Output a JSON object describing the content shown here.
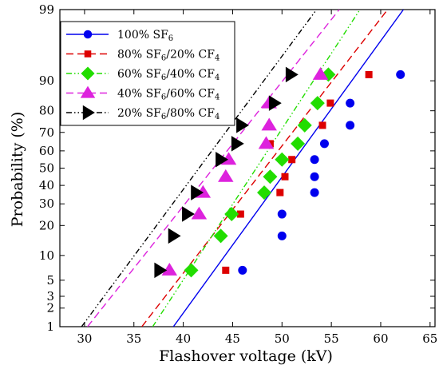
{
  "chart_data": {
    "type": "scatter",
    "xlabel": "Flashover voltage (kV)",
    "ylabel": "Probability (%)",
    "xlim": [
      27.5,
      65.5
    ],
    "ylim": [
      1,
      99
    ],
    "y_scale": "normal-probability",
    "x_ticks": [
      30,
      35,
      40,
      45,
      50,
      55,
      60,
      65
    ],
    "y_ticks": [
      1,
      2,
      3,
      5,
      10,
      20,
      30,
      40,
      50,
      60,
      70,
      80,
      90,
      99
    ],
    "grid": false,
    "legend_position": "top-left",
    "series": [
      {
        "name_base": "100% SF",
        "name_sub": "6",
        "name_rest": "",
        "color": "#0000ee",
        "marker": "circle",
        "line_style": "solid",
        "points": [
          [
            46.0,
            6.7
          ],
          [
            50.0,
            16.0
          ],
          [
            50.0,
            25.0
          ],
          [
            53.3,
            36.0
          ],
          [
            53.3,
            45.0
          ],
          [
            53.3,
            55.0
          ],
          [
            54.3,
            64.0
          ],
          [
            56.9,
            73.5
          ],
          [
            56.9,
            83.0
          ],
          [
            62.0,
            91.5
          ]
        ],
        "fit_line": [
          [
            39.0,
            1
          ],
          [
            62.3,
            99
          ]
        ]
      },
      {
        "name_base": "80% SF",
        "name_sub": "6",
        "name_rest": "/20% CF",
        "name_sub2": "4",
        "color": "#dd0000",
        "marker": "square",
        "line_style": "dashed",
        "points": [
          [
            44.3,
            6.7
          ],
          [
            45.8,
            25.0
          ],
          [
            48.8,
            64.0
          ],
          [
            49.8,
            36.0
          ],
          [
            50.3,
            45.0
          ],
          [
            51.0,
            55.0
          ],
          [
            54.1,
            73.5
          ],
          [
            54.9,
            83.0
          ],
          [
            58.8,
            91.5
          ]
        ],
        "fit_line": [
          [
            35.8,
            1
          ],
          [
            60.7,
            99
          ]
        ]
      },
      {
        "name_base": "60% SF",
        "name_sub": "6",
        "name_rest": "/40% CF",
        "name_sub2": "4",
        "color": "#22dd00",
        "marker": "diamond",
        "line_style": "dash-dot-dot",
        "points": [
          [
            40.8,
            6.7
          ],
          [
            43.8,
            16.0
          ],
          [
            44.9,
            25.0
          ],
          [
            48.2,
            36.0
          ],
          [
            48.8,
            45.0
          ],
          [
            50.0,
            55.0
          ],
          [
            51.6,
            64.0
          ],
          [
            52.3,
            73.5
          ],
          [
            53.6,
            83.0
          ],
          [
            54.7,
            91.5
          ]
        ],
        "fit_line": [
          [
            36.9,
            1
          ],
          [
            57.9,
            99
          ]
        ]
      },
      {
        "name_base": "40% SF",
        "name_sub": "6",
        "name_rest": "/60% CF",
        "name_sub2": "4",
        "color": "#dd22dd",
        "marker": "triangle-up",
        "line_style": "dashed",
        "points": [
          [
            38.6,
            6.7
          ],
          [
            41.6,
            25.0
          ],
          [
            42.0,
            36.0
          ],
          [
            44.3,
            45.0
          ],
          [
            44.6,
            55.0
          ],
          [
            48.4,
            64.0
          ],
          [
            48.7,
            73.5
          ],
          [
            48.7,
            83.0
          ],
          [
            53.9,
            91.5
          ]
        ],
        "fit_line": [
          [
            30.3,
            1
          ],
          [
            55.8,
            99
          ]
        ]
      },
      {
        "name_base": "20% SF",
        "name_sub": "6",
        "name_rest": "/80% CF",
        "name_sub2": "4",
        "color": "#000000",
        "marker": "triangle-right",
        "line_style": "dash-dot-dot",
        "points": [
          [
            37.6,
            6.7
          ],
          [
            39.0,
            16.0
          ],
          [
            40.4,
            25.0
          ],
          [
            41.3,
            36.0
          ],
          [
            43.8,
            55.0
          ],
          [
            45.4,
            64.0
          ],
          [
            45.9,
            73.5
          ],
          [
            49.2,
            83.0
          ],
          [
            50.9,
            91.5
          ]
        ],
        "fit_line": [
          [
            29.7,
            1
          ],
          [
            53.5,
            99
          ]
        ]
      }
    ]
  }
}
